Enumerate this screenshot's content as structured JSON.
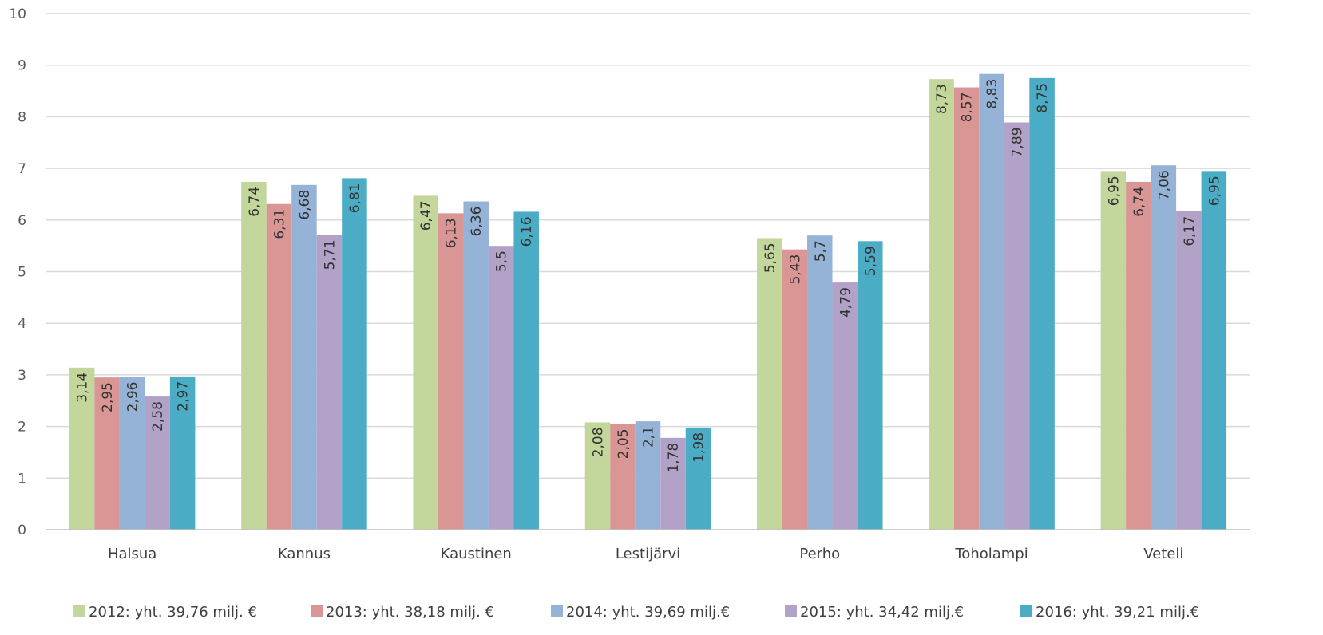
{
  "chart_data": {
    "type": "bar",
    "title": "",
    "xlabel": "",
    "ylabel": "",
    "ylim": [
      0,
      10
    ],
    "yticks": [
      0,
      1,
      2,
      3,
      4,
      5,
      6,
      7,
      8,
      9,
      10
    ],
    "grid": true,
    "legend_position": "bottom",
    "data_labels_rotated": true,
    "categories": [
      "Halsua",
      "Kannus",
      "Kaustinen",
      "Lestijärvi",
      "Perho",
      "Toholampi",
      "Veteli"
    ],
    "series": [
      {
        "name": "2012: yht. 39,76 milj. €",
        "color": "#c3d69b",
        "values": [
          3.14,
          6.74,
          6.47,
          2.08,
          5.65,
          8.73,
          6.95
        ],
        "labels": [
          "3,14",
          "6,74",
          "6,47",
          "2,08",
          "5,65",
          "8,73",
          "6,95"
        ]
      },
      {
        "name": "2013: yht. 38,18 milj. €",
        "color": "#d99694",
        "values": [
          2.95,
          6.31,
          6.13,
          2.05,
          5.43,
          8.57,
          6.74
        ],
        "labels": [
          "2,95",
          "6,31",
          "6,13",
          "2,05",
          "5,43",
          "8,57",
          "6,74"
        ]
      },
      {
        "name": "2014: yht. 39,69 milj.€",
        "color": "#95b3d7",
        "values": [
          2.96,
          6.68,
          6.36,
          2.1,
          5.7,
          8.83,
          7.06
        ],
        "labels": [
          "2,96",
          "6,68",
          "6,36",
          "2,1",
          "5,7",
          "8,83",
          "7,06"
        ]
      },
      {
        "name": "2015: yht. 34,42 milj.€",
        "color": "#b3a2c7",
        "values": [
          2.58,
          5.71,
          5.5,
          1.78,
          4.79,
          7.89,
          6.17
        ],
        "labels": [
          "2,58",
          "5,71",
          "5,5",
          "1,78",
          "4,79",
          "7,89",
          "6,17"
        ]
      },
      {
        "name": "2016: yht. 39,21 milj.€",
        "color": "#4bacc6",
        "values": [
          2.97,
          6.81,
          6.16,
          1.98,
          5.59,
          8.75,
          6.95
        ],
        "labels": [
          "2,97",
          "6,81",
          "6,16",
          "1,98",
          "5,59",
          "8,75",
          "6,95"
        ]
      }
    ]
  }
}
